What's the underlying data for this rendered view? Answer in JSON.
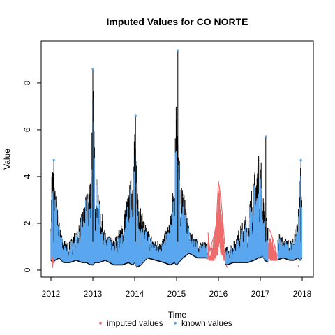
{
  "chart_data": {
    "type": "line",
    "title": "Imputed Values for  CO NORTE",
    "xlabel": "Time",
    "ylabel": "Value",
    "xlim": [
      2012,
      2018
    ],
    "ylim": [
      0,
      9.4
    ],
    "x_ticks": [
      2012,
      2013,
      2014,
      2015,
      2016,
      2017,
      2018
    ],
    "x_tick_labels": [
      "2012",
      "2013",
      "2014",
      "2015",
      "2016",
      "2017",
      "2018"
    ],
    "y_ticks": [
      0,
      2,
      4,
      6,
      8
    ],
    "y_tick_labels": [
      "0",
      "2",
      "4",
      "6",
      "8"
    ],
    "grid": false,
    "legend_position": "bottom",
    "series": [
      {
        "name": "known values",
        "color": "#5aa7ef",
        "envelope": {
          "x": [
            2012.0,
            2012.05,
            2012.1,
            2012.2,
            2012.3,
            2012.45,
            2012.6,
            2012.75,
            2012.85,
            2012.95,
            2013.0,
            2013.05,
            2013.15,
            2013.3,
            2013.5,
            2013.7,
            2013.85,
            2013.95,
            2014.0,
            2014.05,
            2014.15,
            2014.3,
            2014.5,
            2014.7,
            2014.85,
            2014.95,
            2015.0,
            2015.05,
            2015.15,
            2015.3,
            2015.5,
            2015.7,
            2016.2,
            2016.35,
            2016.5,
            2016.7,
            2016.85,
            2016.95,
            2017.0,
            2017.05,
            2017.1,
            2017.2,
            2017.55,
            2017.7,
            2017.8,
            2017.9,
            2017.95,
            2018.0
          ],
          "high": [
            4.3,
            4.7,
            3.5,
            2.2,
            1.3,
            1.2,
            1.8,
            2.5,
            3.3,
            4.2,
            8.6,
            5.2,
            3.3,
            1.6,
            1.3,
            2.0,
            3.4,
            4.4,
            6.6,
            4.4,
            2.6,
            1.8,
            1.2,
            1.5,
            2.3,
            4.0,
            9.4,
            5.0,
            3.6,
            1.8,
            1.3,
            1.2,
            1.0,
            1.2,
            1.8,
            2.5,
            4.2,
            4.7,
            5.7,
            3.5,
            2.6,
            2.0,
            1.4,
            1.3,
            1.6,
            2.2,
            4.8,
            3.0
          ],
          "low": [
            0.4,
            0.3,
            0.4,
            0.5,
            0.3,
            0.3,
            0.4,
            0.3,
            0.3,
            0.2,
            0.2,
            0.3,
            0.3,
            0.4,
            0.2,
            0.2,
            0.3,
            0.2,
            0.3,
            0.1,
            0.2,
            0.5,
            0.4,
            0.3,
            0.2,
            0.3,
            0.2,
            0.3,
            0.5,
            0.7,
            0.5,
            0.5,
            0.2,
            0.3,
            0.3,
            0.3,
            0.4,
            0.5,
            0.5,
            0.6,
            0.4,
            0.3,
            0.5,
            0.4,
            0.4,
            0.5,
            0.4,
            0.5
          ]
        },
        "peaks": [
          {
            "x": 2012.07,
            "y": 4.7
          },
          {
            "x": 2013.0,
            "y": 8.6
          },
          {
            "x": 2014.02,
            "y": 6.6
          },
          {
            "x": 2015.03,
            "y": 9.4
          },
          {
            "x": 2017.13,
            "y": 5.7
          },
          {
            "x": 2017.97,
            "y": 4.7
          }
        ]
      },
      {
        "name": "imputed values",
        "color": "#ee6b6b",
        "segments": [
          {
            "x": [
              2012.02,
              2012.04,
              2012.06,
              2012.08
            ],
            "y": [
              0.6,
              0.1,
              0.5,
              0.3
            ]
          },
          {
            "x": [
              2015.75,
              2015.8,
              2015.85,
              2015.9,
              2015.95,
              2016.0,
              2016.05,
              2016.1,
              2016.15
            ],
            "y": [
              1.6,
              0.8,
              1.2,
              1.5,
              2.0,
              3.8,
              3.2,
              2.2,
              1.1
            ]
          },
          {
            "x": [
              2016.18,
              2016.22
            ],
            "y": [
              0.2,
              0.1
            ]
          },
          {
            "x": [
              2017.2,
              2017.25,
              2017.3,
              2017.35,
              2017.4
            ],
            "y": [
              1.8,
              1.6,
              1.3,
              1.0,
              0.6
            ]
          },
          {
            "x": [
              2017.9,
              2017.93
            ],
            "y": [
              0.2,
              0.1
            ]
          }
        ]
      }
    ]
  }
}
